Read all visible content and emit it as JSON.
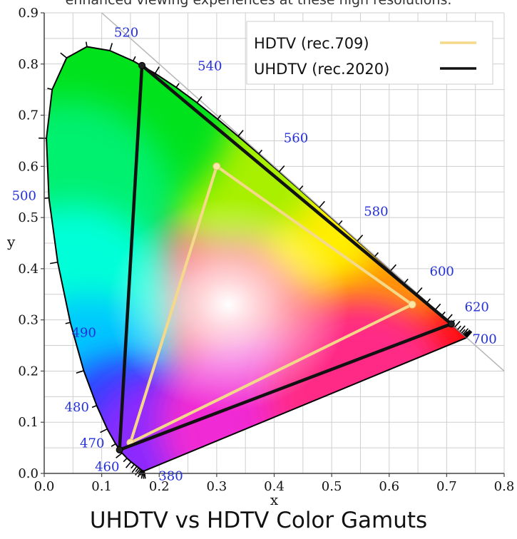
{
  "page": {
    "top_caption": "enhanced viewing experiences at these high resolutions.",
    "bottom_title": "UHDTV vs HDTV Color Gamuts"
  },
  "chart_data": {
    "type": "scatter",
    "title": "UHDTV vs HDTV Color Gamuts",
    "xlabel": "x",
    "ylabel": "y",
    "xlim": [
      0,
      0.8
    ],
    "ylim": [
      0,
      0.9
    ],
    "x_ticks": [
      "0.0",
      "0.1",
      "0.2",
      "0.3",
      "0.4",
      "0.5",
      "0.6",
      "0.7",
      "0.8"
    ],
    "y_ticks": [
      "0.0",
      "0.1",
      "0.2",
      "0.3",
      "0.4",
      "0.5",
      "0.6",
      "0.7",
      "0.8",
      "0.9"
    ],
    "grid": true,
    "legend_position": "top-right",
    "spectral_locus": [
      [
        0.1741,
        0.005
      ],
      [
        0.1738,
        0.0049
      ],
      [
        0.1736,
        0.0049
      ],
      [
        0.1733,
        0.0048
      ],
      [
        0.173,
        0.0048
      ],
      [
        0.1726,
        0.0048
      ],
      [
        0.1721,
        0.0048
      ],
      [
        0.1714,
        0.0051
      ],
      [
        0.1703,
        0.0058
      ],
      [
        0.1689,
        0.0069
      ],
      [
        0.1669,
        0.0086
      ],
      [
        0.1644,
        0.0109
      ],
      [
        0.1611,
        0.0138
      ],
      [
        0.1566,
        0.0177
      ],
      [
        0.151,
        0.0227
      ],
      [
        0.144,
        0.0297
      ],
      [
        0.1355,
        0.0399
      ],
      [
        0.1241,
        0.0578
      ],
      [
        0.1096,
        0.0868
      ],
      [
        0.0913,
        0.1327
      ],
      [
        0.0687,
        0.2007
      ],
      [
        0.0454,
        0.295
      ],
      [
        0.0235,
        0.4127
      ],
      [
        0.0082,
        0.5384
      ],
      [
        0.0039,
        0.6548
      ],
      [
        0.0139,
        0.7502
      ],
      [
        0.0389,
        0.812
      ],
      [
        0.0743,
        0.8338
      ],
      [
        0.1142,
        0.8262
      ],
      [
        0.1547,
        0.8059
      ],
      [
        0.1929,
        0.7816
      ],
      [
        0.2296,
        0.7543
      ],
      [
        0.2658,
        0.7243
      ],
      [
        0.3016,
        0.6923
      ],
      [
        0.3373,
        0.6589
      ],
      [
        0.3731,
        0.6245
      ],
      [
        0.4087,
        0.5896
      ],
      [
        0.4441,
        0.5547
      ],
      [
        0.4788,
        0.5202
      ],
      [
        0.5125,
        0.4866
      ],
      [
        0.5448,
        0.4544
      ],
      [
        0.5752,
        0.4242
      ],
      [
        0.6029,
        0.3965
      ],
      [
        0.627,
        0.3725
      ],
      [
        0.6482,
        0.3514
      ],
      [
        0.6658,
        0.334
      ],
      [
        0.6801,
        0.3197
      ],
      [
        0.6915,
        0.3083
      ],
      [
        0.7006,
        0.2993
      ],
      [
        0.7079,
        0.292
      ],
      [
        0.714,
        0.2859
      ],
      [
        0.719,
        0.2809
      ],
      [
        0.723,
        0.277
      ],
      [
        0.726,
        0.274
      ],
      [
        0.7283,
        0.2717
      ],
      [
        0.73,
        0.27
      ],
      [
        0.7311,
        0.2689
      ],
      [
        0.732,
        0.268
      ],
      [
        0.7327,
        0.2673
      ],
      [
        0.7334,
        0.2666
      ],
      [
        0.734,
        0.266
      ],
      [
        0.7344,
        0.2656
      ],
      [
        0.7346,
        0.2654
      ],
      [
        0.7347,
        0.2653
      ]
    ],
    "wavelength_labels": [
      {
        "text": "380",
        "x": 0.1741,
        "y": 0.005
      },
      {
        "text": "460",
        "x": 0.144,
        "y": 0.0297
      },
      {
        "text": "470",
        "x": 0.1241,
        "y": 0.0578
      },
      {
        "text": "480",
        "x": 0.0913,
        "y": 0.1327
      },
      {
        "text": "490",
        "x": 0.0454,
        "y": 0.295
      },
      {
        "text": "500",
        "x": 0.0082,
        "y": 0.5384
      },
      {
        "text": "520",
        "x": 0.0743,
        "y": 0.8338
      },
      {
        "text": "540",
        "x": 0.2296,
        "y": 0.7543
      },
      {
        "text": "560",
        "x": 0.3731,
        "y": 0.6245
      },
      {
        "text": "580",
        "x": 0.5125,
        "y": 0.4866
      },
      {
        "text": "600",
        "x": 0.627,
        "y": 0.3725
      },
      {
        "text": "620",
        "x": 0.6915,
        "y": 0.3083
      },
      {
        "text": "700",
        "x": 0.7347,
        "y": 0.2653
      }
    ],
    "series": [
      {
        "name": "HDTV (rec.709)",
        "color": "#f5d98a",
        "points": [
          [
            0.64,
            0.33
          ],
          [
            0.3,
            0.6
          ],
          [
            0.15,
            0.06
          ]
        ]
      },
      {
        "name": "UHDTV (rec.2020)",
        "color": "#111111",
        "points": [
          [
            0.708,
            0.292
          ],
          [
            0.17,
            0.797
          ],
          [
            0.131,
            0.046
          ]
        ]
      }
    ]
  }
}
